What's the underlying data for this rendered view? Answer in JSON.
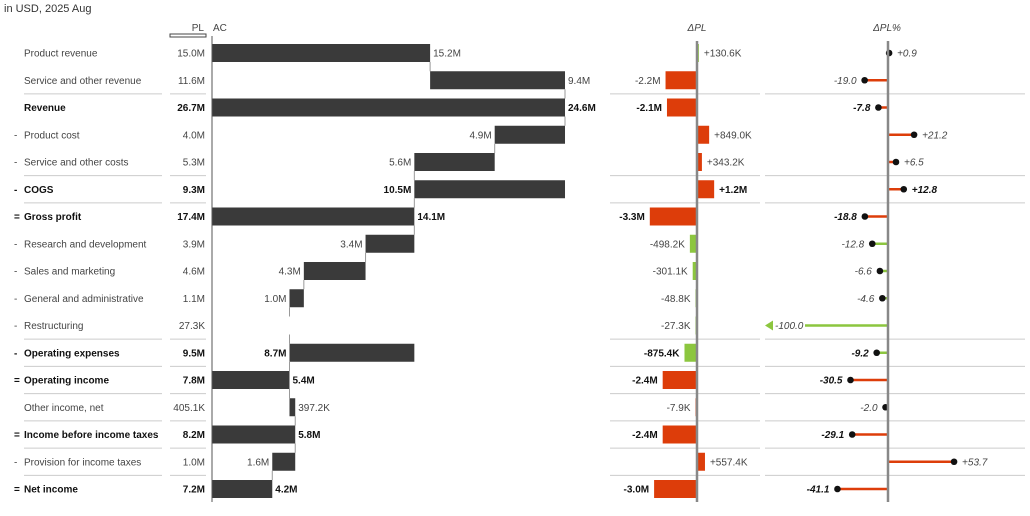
{
  "subtitle": "in USD, 2025 Aug",
  "chart_data": {
    "type": "table",
    "columns": {
      "pl": "PL",
      "ac": "AC",
      "dpl": "ΔPL",
      "dplp": "ΔPL%"
    },
    "unit": "M",
    "colors": {
      "bar": "#3a3a3a",
      "positive": "#8cc63f",
      "negative": "#dd3d0a",
      "axis": "#888888",
      "separator": "#cccccc"
    },
    "rows": [
      {
        "prefix": "",
        "label": "Product revenue",
        "bold": false,
        "pl": "15.0M",
        "ac": "15.2M",
        "from": 0,
        "to": 15.2,
        "dpl": "+130.6K",
        "dpl_value": 0.1306,
        "dpl_good": true,
        "dplp": "+0.9",
        "dplp_value": 0.9
      },
      {
        "prefix": "",
        "label": "Service and other revenue",
        "bold": false,
        "pl": "11.6M",
        "ac": "9.4M",
        "from": 15.2,
        "to": 24.6,
        "dpl": "-2.2M",
        "dpl_value": -2.2,
        "dpl_good": false,
        "dplp": "-19.0",
        "dplp_value": -19.0
      },
      {
        "prefix": "",
        "label": "Revenue",
        "bold": true,
        "pl": "26.7M",
        "ac": "24.6M",
        "from": 0,
        "to": 24.6,
        "dpl": "-2.1M",
        "dpl_value": -2.1,
        "dpl_good": false,
        "dplp": "-7.8",
        "dplp_value": -7.8
      },
      {
        "prefix": "-",
        "label": "Product cost",
        "bold": false,
        "pl": "4.0M",
        "ac": "4.9M",
        "from": 24.6,
        "to": 19.7,
        "dpl": "+849.0K",
        "dpl_value": 0.849,
        "dpl_good": false,
        "dplp": "+21.2",
        "dplp_value": 21.2
      },
      {
        "prefix": "-",
        "label": "Service and other costs",
        "bold": false,
        "pl": "5.3M",
        "ac": "5.6M",
        "from": 19.7,
        "to": 14.1,
        "dpl": "+343.2K",
        "dpl_value": 0.3432,
        "dpl_good": false,
        "dplp": "+6.5",
        "dplp_value": 6.5
      },
      {
        "prefix": "-",
        "label": "COGS",
        "bold": true,
        "pl": "9.3M",
        "ac": "10.5M",
        "from": 24.6,
        "to": 14.1,
        "dpl": "+1.2M",
        "dpl_value": 1.2,
        "dpl_good": false,
        "dplp": "+12.8",
        "dplp_value": 12.8
      },
      {
        "prefix": "=",
        "label": "Gross profit",
        "bold": true,
        "pl": "17.4M",
        "ac": "14.1M",
        "from": 0,
        "to": 14.1,
        "dpl": "-3.3M",
        "dpl_value": -3.3,
        "dpl_good": false,
        "dplp": "-18.8",
        "dplp_value": -18.8
      },
      {
        "prefix": "-",
        "label": "Research and development",
        "bold": false,
        "pl": "3.9M",
        "ac": "3.4M",
        "from": 14.1,
        "to": 10.7,
        "dpl": "-498.2K",
        "dpl_value": -0.4982,
        "dpl_good": true,
        "dplp": "-12.8",
        "dplp_value": -12.8
      },
      {
        "prefix": "-",
        "label": "Sales and marketing",
        "bold": false,
        "pl": "4.6M",
        "ac": "4.3M",
        "from": 10.7,
        "to": 6.4,
        "dpl": "-301.1K",
        "dpl_value": -0.3011,
        "dpl_good": true,
        "dplp": "-6.6",
        "dplp_value": -6.6
      },
      {
        "prefix": "-",
        "label": "General and administrative",
        "bold": false,
        "pl": "1.1M",
        "ac": "1.0M",
        "from": 6.4,
        "to": 5.4,
        "dpl": "-48.8K",
        "dpl_value": -0.0488,
        "dpl_good": true,
        "dplp": "-4.6",
        "dplp_value": -4.6
      },
      {
        "prefix": "-",
        "label": "Restructuring",
        "bold": false,
        "pl": "27.3K",
        "ac": "",
        "from": 5.4,
        "to": 5.4,
        "dpl": "-27.3K",
        "dpl_value": -0.0273,
        "dpl_good": true,
        "dplp": "-100.0",
        "dplp_value": -100.0
      },
      {
        "prefix": "-",
        "label": "Operating expenses",
        "bold": true,
        "pl": "9.5M",
        "ac": "8.7M",
        "from": 14.1,
        "to": 5.4,
        "dpl": "-875.4K",
        "dpl_value": -0.8754,
        "dpl_good": true,
        "dplp": "-9.2",
        "dplp_value": -9.2
      },
      {
        "prefix": "=",
        "label": "Operating income",
        "bold": true,
        "pl": "7.8M",
        "ac": "5.4M",
        "from": 0,
        "to": 5.4,
        "dpl": "-2.4M",
        "dpl_value": -2.4,
        "dpl_good": false,
        "dplp": "-30.5",
        "dplp_value": -30.5
      },
      {
        "prefix": "",
        "label": "Other income, net",
        "bold": false,
        "pl": "405.1K",
        "ac": "397.2K",
        "from": 5.4,
        "to": 5.8,
        "dpl": "-7.9K",
        "dpl_value": -0.0079,
        "dpl_good": false,
        "dplp": "-2.0",
        "dplp_value": -2.0
      },
      {
        "prefix": "=",
        "label": "Income before income taxes",
        "bold": true,
        "pl": "8.2M",
        "ac": "5.8M",
        "from": 0,
        "to": 5.8,
        "dpl": "-2.4M",
        "dpl_value": -2.4,
        "dpl_good": false,
        "dplp": "-29.1",
        "dplp_value": -29.1
      },
      {
        "prefix": "-",
        "label": "Provision for income taxes",
        "bold": false,
        "pl": "1.0M",
        "ac": "1.6M",
        "from": 5.8,
        "to": 4.2,
        "dpl": "+557.4K",
        "dpl_value": 0.5574,
        "dpl_good": false,
        "dplp": "+53.7",
        "dplp_value": 53.7
      },
      {
        "prefix": "=",
        "label": "Net income",
        "bold": true,
        "pl": "7.2M",
        "ac": "4.2M",
        "from": 0,
        "to": 4.2,
        "dpl": "-3.0M",
        "dpl_value": -3.0,
        "dpl_good": false,
        "dplp": "-41.1",
        "dplp_value": -41.1
      }
    ],
    "separators_after": [
      1,
      4,
      5,
      10,
      11,
      12,
      13,
      14,
      15
    ]
  }
}
